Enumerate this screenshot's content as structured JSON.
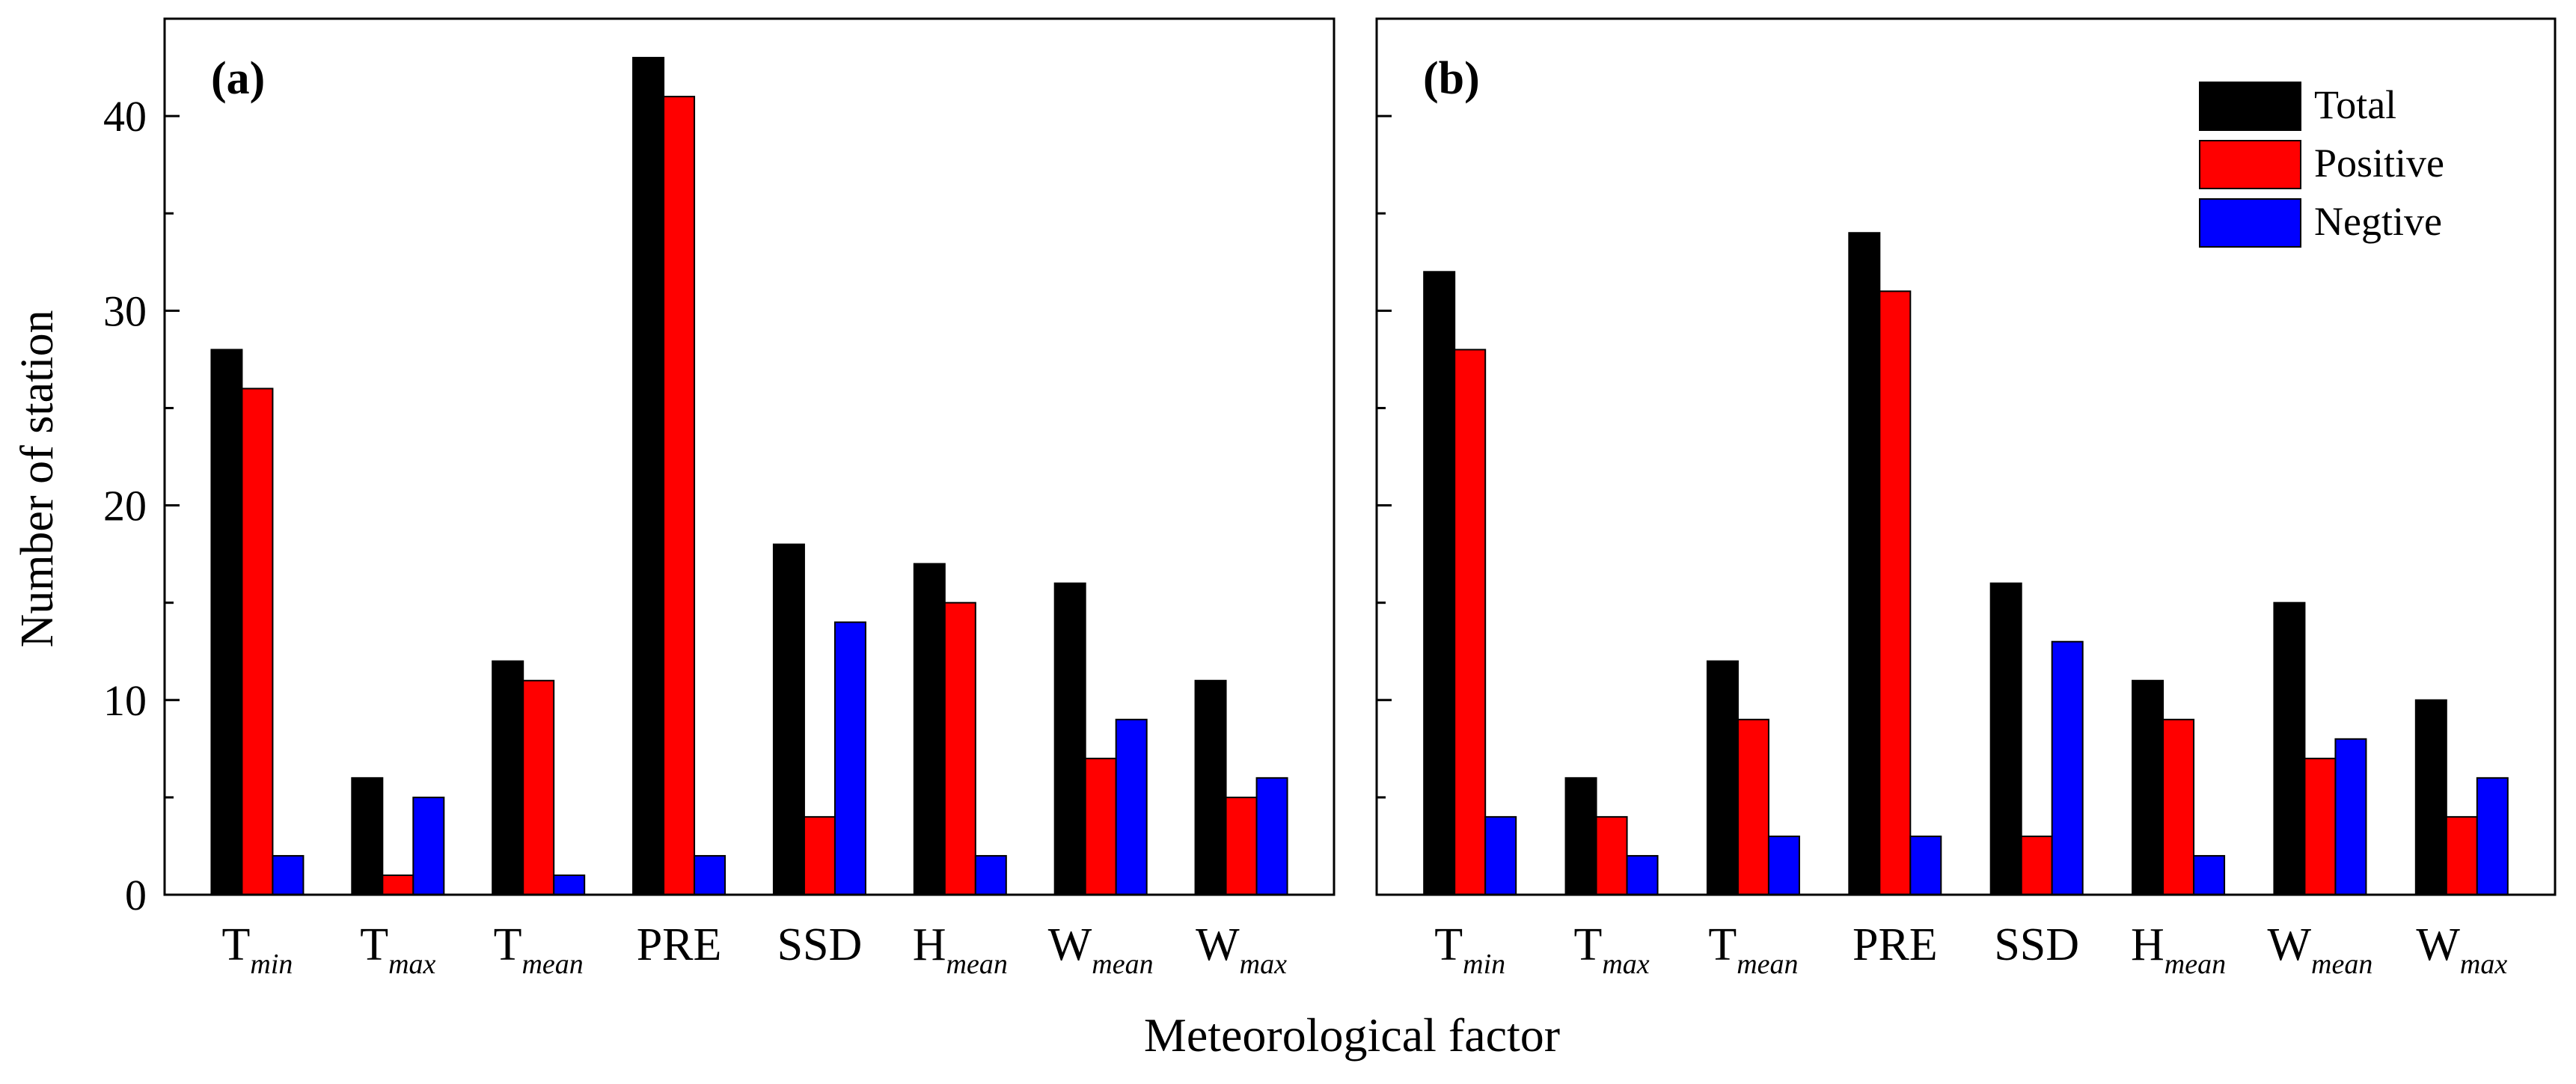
{
  "figure": {
    "ylabel": "Number of station",
    "xlabel": "Meteorological factor",
    "legend": {
      "position": "top-right of panel (b)",
      "entries": [
        {
          "label": "Total",
          "color": "#000000"
        },
        {
          "label": "Positive",
          "color": "#ff0000"
        },
        {
          "label": "Negtive",
          "color": "#0000ff"
        }
      ]
    }
  },
  "chart_data": [
    {
      "type": "bar",
      "panel_label": "(a)",
      "ylim": [
        0,
        45
      ],
      "yticks": [
        "0",
        "10",
        "20",
        "30",
        "40"
      ],
      "categories": [
        {
          "base": "T",
          "sub": "min"
        },
        {
          "base": "T",
          "sub": "max"
        },
        {
          "base": "T",
          "sub": "mean"
        },
        {
          "base": "PRE",
          "sub": ""
        },
        {
          "base": "SSD",
          "sub": ""
        },
        {
          "base": "H",
          "sub": "mean"
        },
        {
          "base": "W",
          "sub": "mean"
        },
        {
          "base": "W",
          "sub": "max"
        }
      ],
      "series": [
        {
          "name": "Total",
          "color": "#000000",
          "values": [
            28,
            6,
            12,
            43,
            18,
            17,
            16,
            11
          ]
        },
        {
          "name": "Positive",
          "color": "#ff0000",
          "values": [
            26,
            1,
            11,
            41,
            4,
            15,
            7,
            5
          ]
        },
        {
          "name": "Negtive",
          "color": "#0000ff",
          "values": [
            2,
            5,
            1,
            2,
            14,
            2,
            9,
            6
          ]
        }
      ]
    },
    {
      "type": "bar",
      "panel_label": "(b)",
      "ylim": [
        0,
        45
      ],
      "yticks": [
        "0",
        "10",
        "20",
        "30",
        "40"
      ],
      "categories": [
        {
          "base": "T",
          "sub": "min"
        },
        {
          "base": "T",
          "sub": "max"
        },
        {
          "base": "T",
          "sub": "mean"
        },
        {
          "base": "PRE",
          "sub": ""
        },
        {
          "base": "SSD",
          "sub": ""
        },
        {
          "base": "H",
          "sub": "mean"
        },
        {
          "base": "W",
          "sub": "mean"
        },
        {
          "base": "W",
          "sub": "max"
        }
      ],
      "series": [
        {
          "name": "Total",
          "color": "#000000",
          "values": [
            32,
            6,
            12,
            34,
            16,
            11,
            15,
            10
          ]
        },
        {
          "name": "Positive",
          "color": "#ff0000",
          "values": [
            28,
            4,
            9,
            31,
            3,
            9,
            7,
            4
          ]
        },
        {
          "name": "Negtive",
          "color": "#0000ff",
          "values": [
            4,
            2,
            3,
            3,
            13,
            2,
            8,
            6
          ]
        }
      ]
    }
  ]
}
